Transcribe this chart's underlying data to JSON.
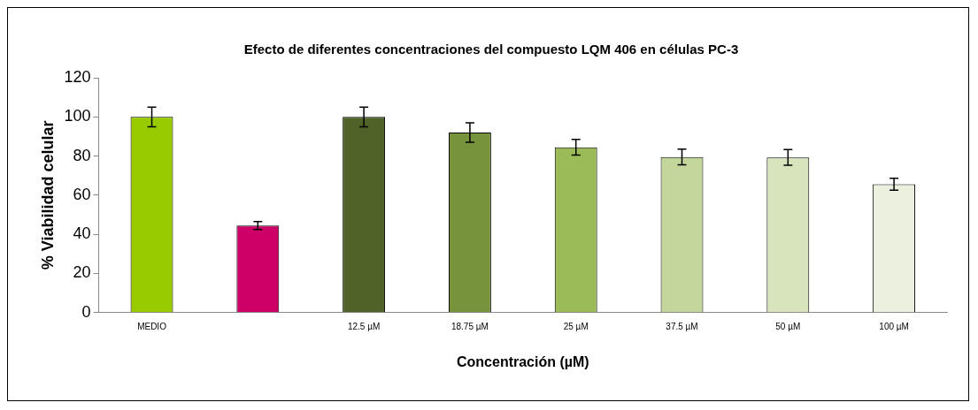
{
  "chart_data": {
    "type": "bar",
    "title": "Efecto de diferentes concentraciones del compuesto LQM 406 en células PC-3",
    "xlabel": "Concentración (µM)",
    "ylabel": "% Viabilidad celular",
    "categories": [
      "MEDIO",
      null,
      "12.5 µM",
      "18.75 µM",
      "25 µM",
      "37.5 µM",
      "50 µM",
      "100 µM"
    ],
    "values": [
      100,
      44.5,
      100,
      92,
      84.5,
      79.5,
      79.3,
      65.6
    ],
    "errors": [
      5,
      2,
      5,
      5,
      4,
      4,
      4,
      3
    ],
    "colors": [
      "#99cc00",
      "#cc0066",
      "#4f6228",
      "#77933c",
      "#9bbb59",
      "#c3d69b",
      "#d7e4bc",
      "#ebf1de"
    ],
    "ylim": [
      0,
      120
    ],
    "yticks": [
      0,
      20,
      40,
      60,
      80,
      100,
      120
    ],
    "grid": false,
    "legend": false
  }
}
